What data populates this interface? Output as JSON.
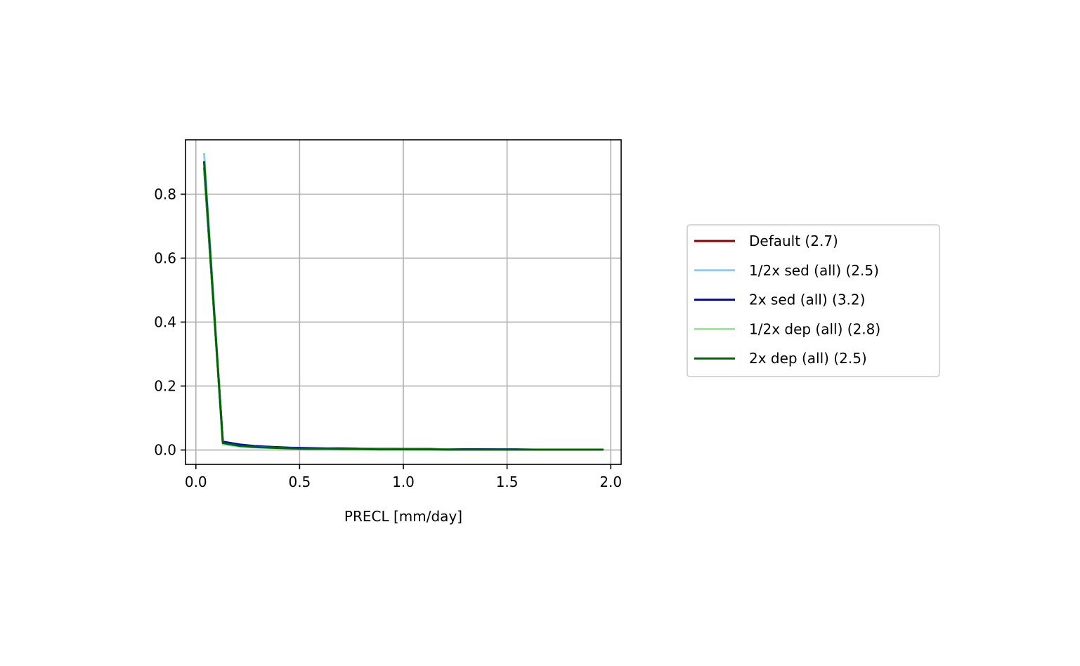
{
  "chart_data": {
    "type": "line",
    "title": "",
    "xlabel": "PRECL [mm/day]",
    "ylabel": "",
    "xlim": [
      -0.05,
      2.05
    ],
    "ylim": [
      -0.045,
      0.97
    ],
    "xticks": [
      0.0,
      0.5,
      1.0,
      1.5,
      2.0
    ],
    "xtick_labels": [
      "0.0",
      "0.5",
      "1.0",
      "1.5",
      "2.0"
    ],
    "yticks": [
      0.0,
      0.2,
      0.4,
      0.6,
      0.8
    ],
    "ytick_labels": [
      "0.0",
      "0.2",
      "0.4",
      "0.6",
      "0.8"
    ],
    "grid": true,
    "legend_position": "right-outside",
    "x": [
      0.04,
      0.13,
      0.21,
      0.29,
      0.38,
      0.46,
      0.54,
      0.63,
      0.71,
      0.79,
      0.88,
      0.96,
      1.04,
      1.13,
      1.21,
      1.29,
      1.38,
      1.46,
      1.54,
      1.63,
      1.71,
      1.79,
      1.88,
      1.96
    ],
    "series": [
      {
        "name": "Default (2.7)",
        "color": "#8b0000",
        "values": [
          0.9,
          0.023,
          0.014,
          0.01,
          0.008,
          0.006,
          0.005,
          0.004,
          0.004,
          0.003,
          0.003,
          0.003,
          0.002,
          0.002,
          0.002,
          0.002,
          0.002,
          0.001,
          0.001,
          0.001,
          0.001,
          0.001,
          0.001,
          0.001
        ]
      },
      {
        "name": "1/2x sed (all) (2.5)",
        "color": "#87cefa",
        "values": [
          0.925,
          0.018,
          0.011,
          0.008,
          0.006,
          0.005,
          0.004,
          0.003,
          0.003,
          0.003,
          0.002,
          0.002,
          0.002,
          0.002,
          0.001,
          0.001,
          0.001,
          0.001,
          0.001,
          0.001,
          0.001,
          0.001,
          0.001,
          0.001
        ]
      },
      {
        "name": "2x sed (all) (3.2)",
        "color": "#0000cd",
        "values": [
          0.88,
          0.026,
          0.017,
          0.012,
          0.009,
          0.007,
          0.006,
          0.005,
          0.005,
          0.004,
          0.004,
          0.003,
          0.003,
          0.003,
          0.002,
          0.002,
          0.002,
          0.002,
          0.002,
          0.001,
          0.001,
          0.001,
          0.001,
          0.001
        ]
      },
      {
        "name": "1/2x dep (all) (2.8)",
        "color": "#90ee90",
        "values": [
          0.89,
          0.02,
          0.012,
          0.009,
          0.007,
          0.005,
          0.004,
          0.004,
          0.003,
          0.003,
          0.003,
          0.002,
          0.002,
          0.002,
          0.002,
          0.001,
          0.001,
          0.001,
          0.001,
          0.001,
          0.001,
          0.001,
          0.001,
          0.001
        ]
      },
      {
        "name": "2x dep (all) (2.5)",
        "color": "#006400",
        "values": [
          0.9,
          0.022,
          0.013,
          0.009,
          0.007,
          0.005,
          0.004,
          0.004,
          0.003,
          0.003,
          0.002,
          0.002,
          0.002,
          0.002,
          0.001,
          0.001,
          0.001,
          0.001,
          0.001,
          0.001,
          0.001,
          0.001,
          0.001,
          0.001
        ]
      }
    ]
  }
}
